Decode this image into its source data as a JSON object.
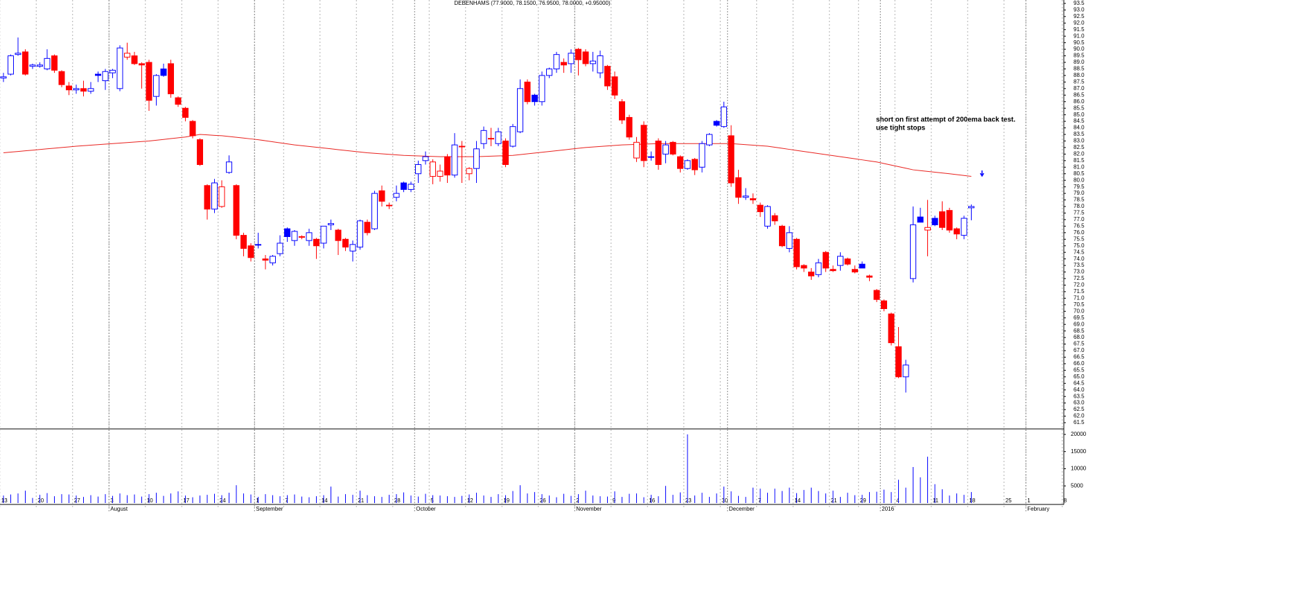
{
  "chart_data": {
    "type": "candlestick",
    "title": "DEBENHAMS (77.9000, 78.1500, 76.9500, 78.0000, +0.95000)",
    "annotations": [
      "short on first attempt of 200ema back test.",
      "use tight stops"
    ],
    "annotation_color": "#0000ff",
    "categories": [
      "13",
      null,
      null,
      null,
      null,
      "20",
      null,
      null,
      null,
      null,
      "27",
      null,
      null,
      null,
      null,
      "3",
      null,
      null,
      null,
      null,
      "10",
      null,
      null,
      null,
      null,
      "17",
      null,
      null,
      null,
      null,
      "24",
      null,
      null,
      null,
      null,
      "1",
      null,
      null,
      null,
      "7",
      null,
      null,
      null,
      null,
      "14",
      null,
      null,
      null,
      null,
      "21",
      null,
      null,
      null,
      null,
      "28",
      null,
      null,
      null,
      null,
      "5",
      null,
      null,
      null,
      null,
      "12",
      null,
      null,
      null,
      null,
      "19",
      null,
      null,
      null,
      null,
      "26",
      null,
      null,
      null,
      null,
      "2",
      null,
      null,
      null,
      null,
      "9",
      null,
      null,
      null,
      null,
      "16",
      null,
      null,
      null,
      null,
      "23",
      null,
      null,
      null,
      null,
      "30",
      null,
      null,
      null,
      null,
      "7",
      null,
      null,
      null,
      null,
      "14",
      null,
      null,
      null,
      null,
      "21",
      null,
      null,
      null,
      "29",
      null,
      null,
      null,
      null,
      "4",
      null,
      null,
      null,
      null,
      "11",
      null,
      null,
      null,
      null,
      "18",
      null,
      null,
      null,
      null,
      "25",
      null,
      null,
      "1",
      null,
      null,
      null,
      null,
      "8"
    ],
    "months": [
      null,
      null,
      null,
      null,
      null,
      null,
      null,
      null,
      null,
      null,
      null,
      null,
      null,
      null,
      null,
      "August",
      null,
      null,
      null,
      null,
      null,
      null,
      null,
      null,
      null,
      null,
      null,
      null,
      null,
      null,
      null,
      null,
      null,
      null,
      null,
      "September",
      null,
      null,
      null,
      null,
      null,
      null,
      null,
      null,
      null,
      null,
      null,
      null,
      null,
      null,
      null,
      null,
      null,
      null,
      null,
      null,
      null,
      "October",
      null,
      null,
      null,
      null,
      null,
      null,
      null,
      null,
      null,
      null,
      null,
      null,
      null,
      null,
      null,
      null,
      null,
      null,
      null,
      null,
      null,
      "November",
      null,
      null,
      null,
      null,
      null,
      null,
      null,
      null,
      null,
      null,
      null,
      null,
      null,
      null,
      null,
      null,
      null,
      null,
      null,
      null,
      "December",
      null,
      null,
      null,
      null,
      null,
      null,
      null,
      null,
      null,
      null,
      null,
      null,
      null,
      null,
      null,
      null,
      null,
      null,
      null,
      null,
      "2016",
      null,
      null,
      null,
      null,
      null,
      null,
      null,
      null,
      null,
      null,
      null,
      null,
      null,
      null,
      null,
      null,
      null,
      null,
      null,
      "February",
      null,
      null,
      null,
      null,
      null
    ],
    "open": [
      87.8,
      88.1,
      89.6,
      89.8,
      88.7,
      88.7,
      88.5,
      89.5,
      88.3,
      87.2,
      86.9,
      87.0,
      86.8,
      88.1,
      87.6,
      88.2,
      87.0,
      89.4,
      89.5,
      88.9,
      89.0,
      86.4,
      88.5,
      88.9,
      86.3,
      85.5,
      84.5,
      83.1,
      79.6,
      77.8,
      78.0,
      80.6,
      79.6,
      75.8,
      75.0,
      75.1,
      74.0,
      73.7,
      74.4,
      76.3,
      75.4,
      75.7,
      75.4,
      75.5,
      75.2,
      76.6,
      76.2,
      75.5,
      74.6,
      74.9,
      76.8,
      76.3,
      79.2,
      78.1,
      78.7,
      79.8,
      79.3,
      80.5,
      81.5,
      80.3,
      80.3,
      81.8,
      80.4,
      82.6,
      80.5,
      80.9,
      82.8,
      83.2,
      82.8,
      83.0,
      82.6,
      83.7,
      87.5,
      86.5,
      86.0,
      88.0,
      88.5,
      89.0,
      88.9,
      90.0,
      89.8,
      88.9,
      88.2,
      88.7,
      87.9,
      86.0,
      84.8,
      81.7,
      84.2,
      81.8,
      83.0,
      82.0,
      82.9,
      81.8,
      80.9,
      81.6,
      81.0,
      82.7,
      84.5,
      84.1,
      83.4,
      80.2,
      78.7,
      78.6,
      78.1,
      76.5,
      77.3,
      76.5,
      74.8,
      75.5,
      73.5,
      73.0,
      72.8,
      74.5,
      73.2,
      73.5,
      74.0,
      73.2,
      73.6,
      72.7,
      71.6,
      70.8,
      69.8,
      67.3,
      65.0,
      72.5,
      77.2,
      76.2,
      77.1,
      77.6,
      77.7,
      76.3,
      75.8,
      77.9,
      null,
      null,
      null,
      null,
      null,
      null,
      null,
      null,
      null,
      null,
      null,
      null,
      null
    ],
    "high": [
      88.2,
      89.6,
      90.9,
      90.0,
      88.9,
      89.0,
      90.0,
      89.6,
      88.4,
      87.5,
      87.3,
      87.6,
      87.5,
      88.3,
      88.5,
      88.5,
      90.3,
      90.5,
      89.8,
      89.0,
      89.2,
      88.1,
      88.9,
      89.2,
      86.4,
      85.6,
      84.6,
      83.2,
      79.7,
      80.1,
      80.0,
      81.9,
      79.7,
      76.0,
      75.2,
      76.0,
      74.3,
      74.3,
      75.8,
      76.4,
      76.2,
      75.8,
      76.3,
      75.6,
      76.5,
      77.0,
      76.3,
      75.6,
      75.4,
      77.0,
      77.0,
      79.2,
      79.6,
      78.3,
      79.6,
      79.9,
      79.9,
      81.5,
      82.2,
      81.6,
      81.2,
      82.0,
      83.6,
      83.0,
      81.0,
      83.0,
      84.1,
      84.0,
      84.0,
      83.2,
      84.3,
      87.7,
      87.7,
      86.6,
      88.3,
      88.6,
      89.8,
      89.3,
      90.0,
      90.1,
      90.0,
      89.8,
      89.9,
      88.8,
      88.3,
      86.2,
      85.0,
      83.3,
      84.5,
      82.2,
      83.2,
      83.0,
      83.0,
      81.9,
      81.6,
      81.7,
      83.0,
      83.6,
      84.6,
      86.0,
      84.2,
      80.8,
      79.4,
      79.0,
      78.3,
      78.1,
      77.5,
      76.6,
      76.5,
      75.6,
      73.6,
      73.3,
      74.0,
      74.6,
      73.5,
      74.5,
      74.1,
      73.5,
      73.8,
      72.8,
      71.7,
      70.9,
      69.9,
      68.8,
      66.3,
      78.0,
      77.9,
      78.5,
      77.3,
      78.4,
      77.9,
      76.4,
      77.3,
      78.15,
      null,
      null,
      null,
      null,
      null,
      null,
      null,
      null,
      null,
      null,
      null,
      null,
      null
    ],
    "low": [
      87.5,
      88.0,
      89.5,
      88.0,
      88.5,
      88.6,
      88.4,
      88.2,
      87.1,
      86.5,
      86.6,
      86.4,
      86.6,
      87.5,
      86.9,
      87.8,
      86.8,
      89.2,
      88.8,
      87.0,
      85.3,
      85.7,
      87.9,
      86.3,
      85.6,
      84.5,
      83.2,
      81.1,
      77.0,
      77.5,
      77.9,
      80.5,
      75.5,
      74.2,
      73.8,
      74.8,
      73.2,
      73.5,
      74.2,
      75.3,
      75.0,
      75.5,
      75.0,
      74.0,
      74.8,
      76.2,
      74.3,
      74.6,
      73.8,
      74.7,
      75.8,
      76.2,
      78.0,
      77.8,
      78.4,
      79.1,
      79.1,
      79.8,
      81.2,
      79.7,
      79.9,
      79.8,
      80.2,
      79.8,
      80.0,
      79.8,
      82.4,
      82.6,
      82.6,
      81.0,
      82.5,
      83.6,
      85.8,
      85.7,
      85.7,
      87.8,
      88.2,
      88.2,
      88.2,
      88.0,
      88.7,
      88.3,
      87.8,
      86.9,
      86.2,
      84.3,
      83.1,
      81.4,
      81.0,
      81.5,
      80.8,
      81.3,
      81.9,
      80.6,
      80.8,
      80.4,
      80.6,
      82.6,
      84.1,
      84.0,
      79.5,
      78.2,
      78.5,
      78.2,
      77.2,
      76.3,
      76.6,
      74.9,
      74.5,
      73.2,
      73.0,
      72.4,
      72.6,
      73.0,
      73.0,
      73.1,
      73.5,
      72.9,
      73.3,
      72.3,
      70.7,
      70.0,
      67.4,
      64.9,
      63.8,
      72.2,
      76.8,
      74.2,
      76.5,
      76.2,
      76.0,
      75.5,
      75.5,
      76.95,
      null,
      null,
      null,
      null,
      null,
      null,
      null,
      null,
      null,
      null,
      null,
      null,
      null
    ],
    "close": [
      87.9,
      89.5,
      89.7,
      88.1,
      88.8,
      88.8,
      89.3,
      88.4,
      87.3,
      86.9,
      87.0,
      86.8,
      87.0,
      88.0,
      88.3,
      88.4,
      90.1,
      89.7,
      88.9,
      88.8,
      86.1,
      88.0,
      88.0,
      86.6,
      85.8,
      84.8,
      83.4,
      81.2,
      77.8,
      79.8,
      79.5,
      81.4,
      75.8,
      74.8,
      74.1,
      75.1,
      73.9,
      74.2,
      75.2,
      75.7,
      76.1,
      75.7,
      76.0,
      75.0,
      76.5,
      76.7,
      75.4,
      74.9,
      75.1,
      76.9,
      76.0,
      79.0,
      78.4,
      78.1,
      79.0,
      79.3,
      79.7,
      81.2,
      81.8,
      81.4,
      80.7,
      80.4,
      82.7,
      82.6,
      80.9,
      82.4,
      83.8,
      83.2,
      83.7,
      81.2,
      84.1,
      87.0,
      86.0,
      86.0,
      88.0,
      88.5,
      89.6,
      88.8,
      89.7,
      89.2,
      88.9,
      89.1,
      89.5,
      87.2,
      86.5,
      84.6,
      83.3,
      82.9,
      81.5,
      81.8,
      81.2,
      82.7,
      82.0,
      80.9,
      81.5,
      80.8,
      82.8,
      83.5,
      84.2,
      85.6,
      79.8,
      78.7,
      78.8,
      78.5,
      77.6,
      78.0,
      76.9,
      75.0,
      76.0,
      73.4,
      73.3,
      72.7,
      73.7,
      73.3,
      73.1,
      74.2,
      73.6,
      73.0,
      73.3,
      72.6,
      70.9,
      70.2,
      67.6,
      65.0,
      65.9,
      76.6,
      76.8,
      76.4,
      76.6,
      76.4,
      76.2,
      75.9,
      77.1,
      78.0,
      null,
      null,
      null,
      null,
      null,
      null,
      null,
      null,
      null,
      null,
      null,
      null,
      null
    ],
    "ema": [
      82.1,
      82.15,
      82.2,
      82.25,
      82.3,
      82.35,
      82.4,
      82.45,
      82.5,
      82.55,
      82.6,
      82.64,
      82.68,
      82.72,
      82.76,
      82.8,
      82.84,
      82.88,
      82.92,
      82.96,
      83.0,
      83.06,
      83.12,
      83.18,
      83.24,
      83.3,
      83.4,
      83.5,
      83.47,
      83.43,
      83.4,
      83.34,
      83.28,
      83.22,
      83.16,
      83.1,
      83.02,
      82.94,
      82.86,
      82.78,
      82.7,
      82.64,
      82.58,
      82.52,
      82.46,
      82.4,
      82.34,
      82.28,
      82.22,
      82.16,
      82.1,
      82.06,
      82.02,
      81.98,
      81.94,
      81.9,
      81.88,
      81.86,
      81.84,
      81.82,
      81.8,
      81.8,
      81.8,
      81.8,
      81.8,
      81.8,
      81.82,
      81.84,
      81.86,
      81.88,
      81.9,
      81.96,
      82.02,
      82.08,
      82.14,
      82.2,
      82.26,
      82.32,
      82.38,
      82.44,
      82.5,
      82.54,
      82.58,
      82.62,
      82.66,
      82.7,
      82.72,
      82.74,
      82.76,
      82.78,
      82.8,
      82.8,
      82.8,
      82.8,
      82.8,
      82.8,
      82.8,
      82.8,
      82.8,
      82.8,
      82.8,
      82.76,
      82.72,
      82.68,
      82.64,
      82.6,
      82.52,
      82.44,
      82.36,
      82.28,
      82.2,
      82.12,
      82.04,
      81.96,
      81.88,
      81.8,
      81.72,
      81.64,
      81.56,
      81.48,
      81.4,
      81.28,
      81.16,
      81.04,
      80.92,
      80.8,
      80.74,
      80.68,
      80.62,
      80.56,
      80.5,
      80.43,
      80.37,
      80.3,
      null,
      null,
      null,
      null,
      null,
      null,
      null,
      null,
      null,
      null,
      null,
      null,
      null
    ],
    "volume": [
      2200,
      2500,
      2800,
      3600,
      1500,
      2400,
      2900,
      2000,
      2600,
      2500,
      2200,
      1800,
      2300,
      1900,
      2600,
      2100,
      2800,
      2300,
      2500,
      1900,
      2600,
      3000,
      2100,
      2800,
      3400,
      2200,
      1700,
      2200,
      2400,
      2700,
      2300,
      3000,
      5200,
      2800,
      2500,
      1800,
      2600,
      2300,
      2000,
      2300,
      2500,
      1900,
      1700,
      2000,
      2300,
      4800,
      1900,
      2600,
      2400,
      3600,
      2300,
      2000,
      1800,
      2400,
      2600,
      3100,
      2200,
      1900,
      2700,
      2300,
      2200,
      2000,
      1800,
      2100,
      2500,
      3000,
      2200,
      1800,
      2600,
      2300,
      3500,
      5200,
      2800,
      3200,
      2600,
      2200,
      1700,
      2700,
      2100,
      2600,
      3600,
      2200,
      2000,
      1900,
      3400,
      1800,
      2700,
      2800,
      1700,
      2400,
      2000,
      5000,
      2400,
      3100,
      20000,
      2200,
      3000,
      1800,
      2800,
      4800,
      3400,
      2100,
      1800,
      4500,
      4200,
      3000,
      4200,
      3500,
      4500,
      2900,
      3800,
      4500,
      3500,
      2800,
      3600,
      1800,
      3000,
      2300,
      2400,
      3200,
      3300,
      3900,
      3200,
      6800,
      4500,
      10500,
      7500,
      13500,
      5500,
      4000,
      2200,
      2800,
      2400,
      3200,
      null,
      null,
      null,
      null,
      null,
      null,
      null,
      null,
      null,
      null,
      null,
      null,
      null
    ],
    "up_color": "#0000ff",
    "down_color": "#ff0000",
    "ema_color": "#e8201c",
    "volume_color": "#0000ff",
    "ylim": [
      61.13,
      93.76
    ],
    "yticks": [
      61.5,
      {
        "value": 62,
        "label": "62.0"
      },
      62.5,
      {
        "value": 63,
        "label": "63.0"
      },
      63.5,
      {
        "value": 64,
        "label": "64.0"
      },
      64.5,
      {
        "value": 65,
        "label": "65.0"
      },
      65.5,
      {
        "value": 66,
        "label": "66.0"
      },
      66.5,
      {
        "value": 67,
        "label": "67.0"
      },
      67.5,
      {
        "value": 68,
        "label": "68.0"
      },
      68.5,
      {
        "value": 69,
        "label": "69.0"
      },
      69.5,
      {
        "value": 70,
        "label": "70.0"
      },
      70.5,
      {
        "value": 71,
        "label": "71.0"
      },
      71.5,
      {
        "value": 72,
        "label": "72.0"
      },
      72.5,
      {
        "value": 73,
        "label": "73.0"
      },
      73.5,
      {
        "value": 74,
        "label": "74.0"
      },
      74.5,
      {
        "value": 75,
        "label": "75.0"
      },
      75.5,
      {
        "value": 76,
        "label": "76.0"
      },
      76.5,
      {
        "value": 77,
        "label": "77.0"
      },
      77.5,
      {
        "value": 78,
        "label": "78.0"
      },
      78.5,
      {
        "value": 79,
        "label": "79.0"
      },
      79.5,
      {
        "value": 80,
        "label": "80.0"
      },
      80.5,
      {
        "value": 81,
        "label": "81.0"
      },
      81.5,
      {
        "value": 82,
        "label": "82.0"
      },
      82.5,
      {
        "value": 83,
        "label": "83.0"
      },
      83.5,
      {
        "value": 84,
        "label": "84.0"
      },
      84.5,
      {
        "value": 85,
        "label": "85.0"
      },
      85.5,
      {
        "value": 86,
        "label": "86.0"
      },
      86.5,
      {
        "value": 87,
        "label": "87.0"
      },
      87.5,
      {
        "value": 88,
        "label": "88.0"
      },
      88.5,
      {
        "value": 89,
        "label": "89.0"
      },
      89.5,
      {
        "value": 90,
        "label": "90.0"
      },
      90.5,
      {
        "value": 91,
        "label": "91.0"
      },
      91.5,
      {
        "value": 92,
        "label": "92.0"
      },
      92.5,
      {
        "value": 93,
        "label": "93.0"
      },
      93.5
    ],
    "y2lim": [
      0,
      21400
    ],
    "y2ticks": [
      5000,
      10000,
      15000,
      20000
    ]
  }
}
